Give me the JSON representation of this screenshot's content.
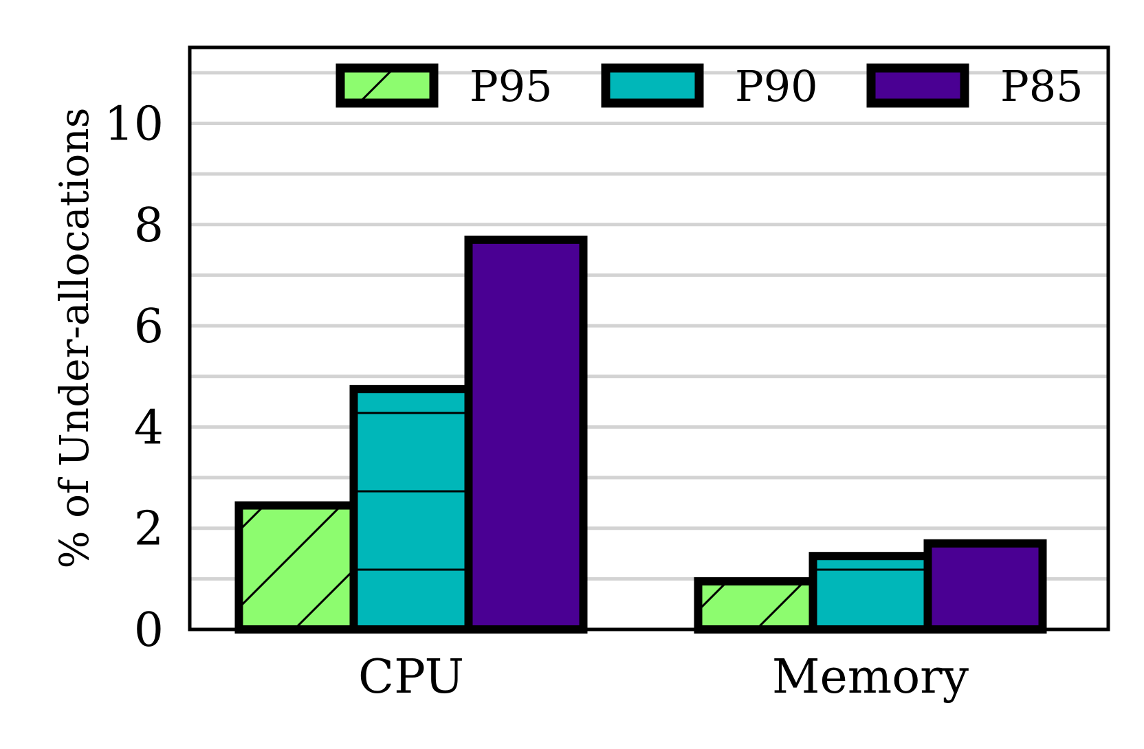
{
  "chart_data": {
    "type": "bar",
    "title": "",
    "xlabel": "",
    "ylabel": "% of Under-allocations",
    "categories": [
      "CPU",
      "Memory"
    ],
    "series": [
      {
        "name": "P95",
        "values": [
          2.45,
          0.95
        ],
        "color": "#8dfc6f",
        "hatch": "diagonal"
      },
      {
        "name": "P90",
        "values": [
          4.75,
          1.45
        ],
        "color": "#00b7b9",
        "hatch": "horizontal"
      },
      {
        "name": "P85",
        "values": [
          7.7,
          1.7
        ],
        "color": "#4a0093",
        "hatch": "none"
      }
    ],
    "ylim": [
      0,
      11.5
    ],
    "yticks": [
      0,
      2,
      4,
      6,
      8,
      10
    ],
    "ytick_labels": [
      "0",
      "2",
      "4",
      "6",
      "8",
      "10"
    ],
    "grid": true,
    "grid_color": "#d3d3d3",
    "legend_placement": "top-right",
    "frame_color": "#000000"
  }
}
